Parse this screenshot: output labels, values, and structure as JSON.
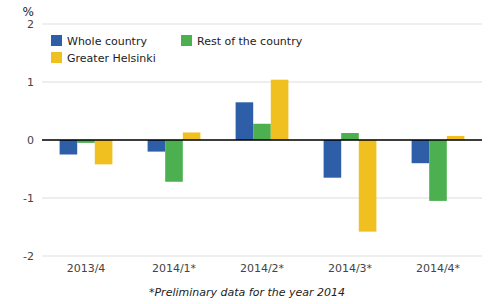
{
  "chart_data": {
    "type": "bar",
    "ylabel": "%",
    "footnote": "*Preliminary data for the year 2014",
    "categories": [
      "2013/4",
      "2014/1*",
      "2014/2*",
      "2014/3*",
      "2014/4*"
    ],
    "series": [
      {
        "name": "Whole country",
        "color": "#2E5EA8",
        "values": [
          -0.25,
          -0.2,
          0.65,
          -0.65,
          -0.4
        ]
      },
      {
        "name": "Rest of the country",
        "color": "#4CAF50",
        "values": [
          -0.05,
          -0.72,
          0.28,
          0.12,
          -1.05
        ]
      },
      {
        "name": "Greater Helsinki",
        "color": "#F0C020",
        "values": [
          -0.42,
          0.13,
          1.04,
          -1.58,
          0.07
        ]
      }
    ],
    "ylim": [
      -2,
      2
    ],
    "yticks": [
      -2,
      -1,
      0,
      1,
      2
    ],
    "grid": true,
    "legend": "upper left"
  }
}
